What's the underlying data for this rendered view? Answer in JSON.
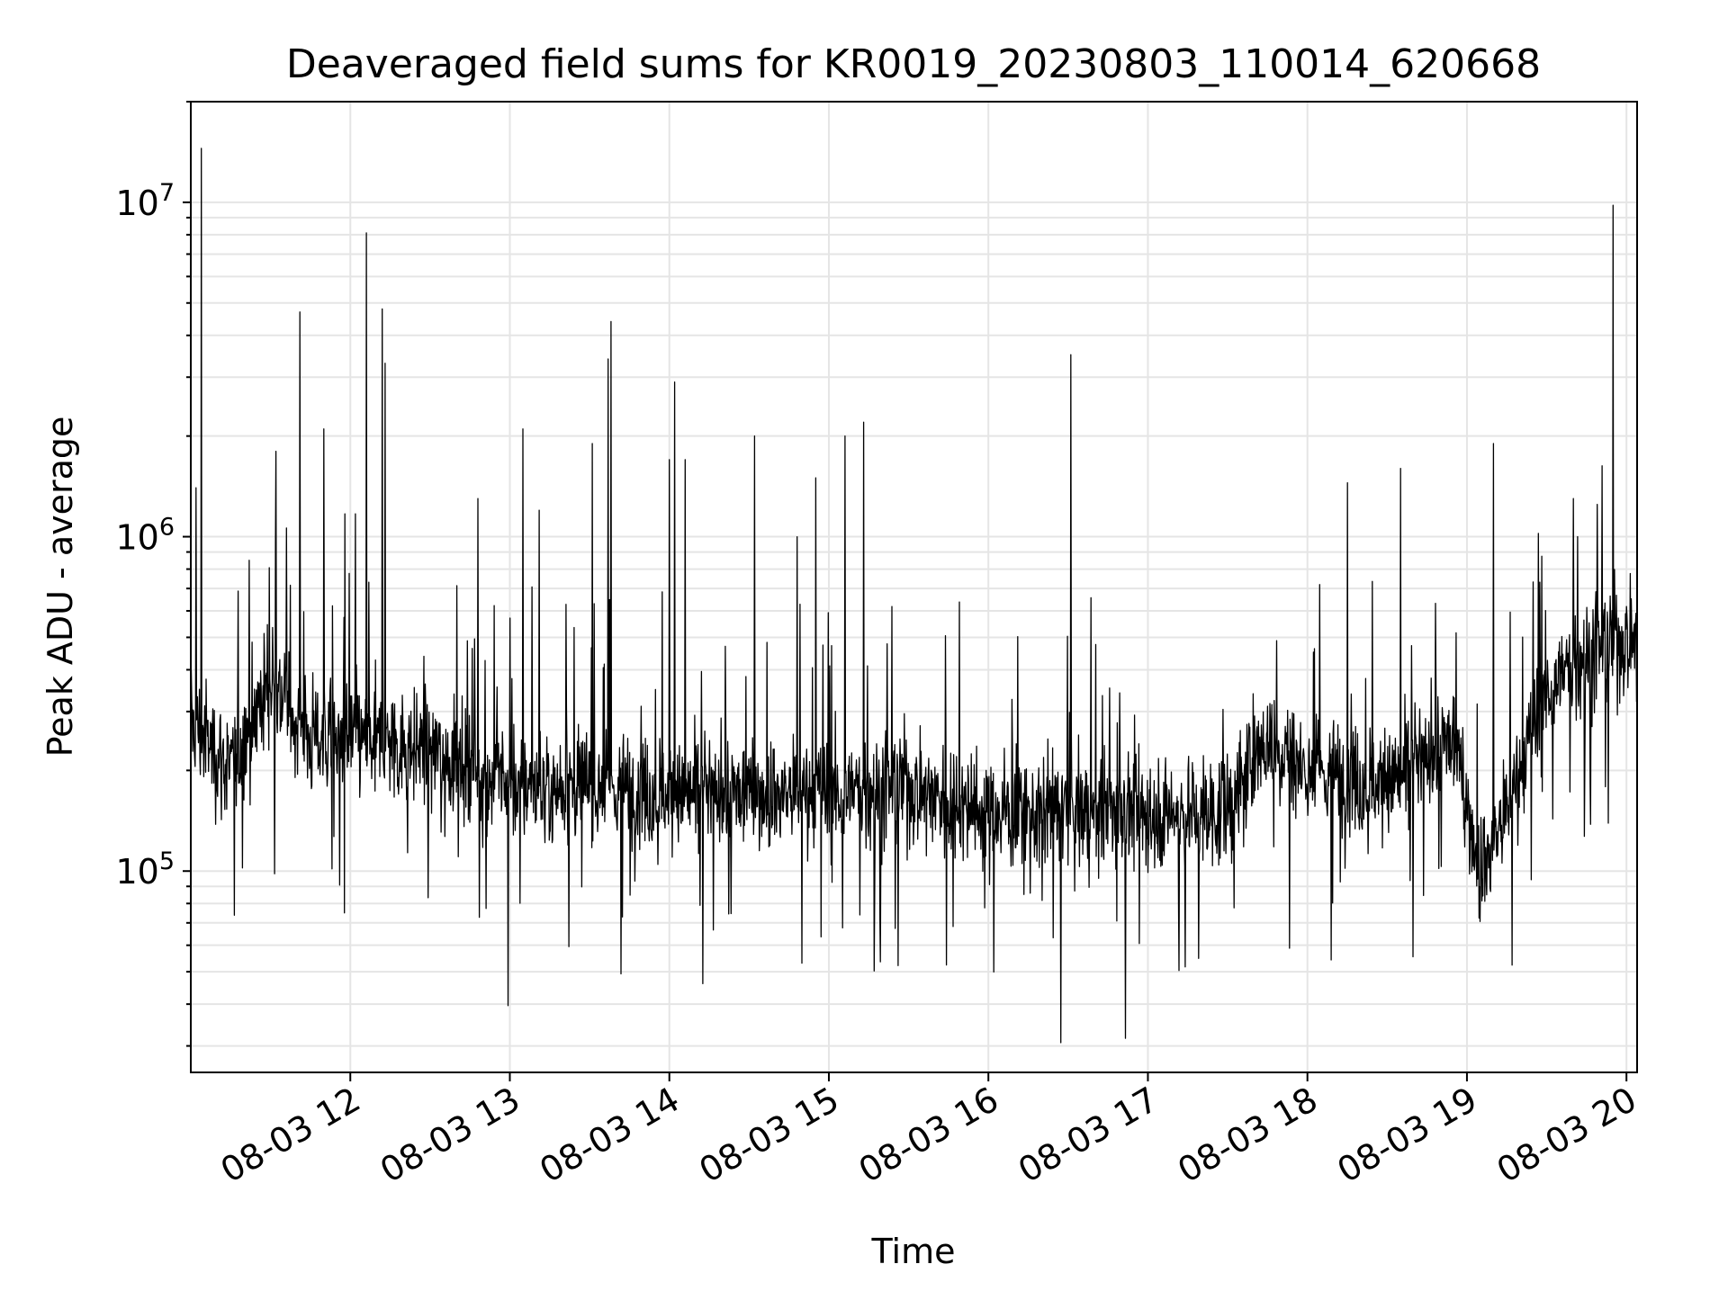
{
  "chart_data": {
    "type": "line",
    "title": "Deaveraged field sums for KR0019_20230803_110014_620668",
    "xlabel": "Time",
    "ylabel": "Peak ADU - average",
    "y_scale": "log",
    "ylim": [
      25000,
      20000000
    ],
    "xlim": [
      "2023-08-03 11:00",
      "2023-08-03 20:04"
    ],
    "x_ticks": [
      "2023-08-03 12:00",
      "2023-08-03 13:00",
      "2023-08-03 14:00",
      "2023-08-03 15:00",
      "2023-08-03 16:00",
      "2023-08-03 17:00",
      "2023-08-03 18:00",
      "2023-08-03 19:00",
      "2023-08-03 20:00"
    ],
    "x_tick_labels": [
      "08-03 12",
      "08-03 13",
      "08-03 14",
      "08-03 15",
      "08-03 16",
      "08-03 17",
      "08-03 18",
      "08-03 19",
      "08-03 20"
    ],
    "y_ticks": [
      100000,
      1000000,
      10000000
    ],
    "y_tick_labels": [
      {
        "base": "10",
        "exp": "5"
      },
      {
        "base": "10",
        "exp": "6"
      },
      {
        "base": "10",
        "exp": "7"
      }
    ],
    "grid": true,
    "line_color": "#000000",
    "grid_color": "#e5e5e5",
    "baseline_series": {
      "x": [
        "2023-08-03 11:00",
        "2023-08-03 11:15",
        "2023-08-03 11:30",
        "2023-08-03 11:45",
        "2023-08-03 12:00",
        "2023-08-03 12:30",
        "2023-08-03 13:00",
        "2023-08-03 13:30",
        "2023-08-03 14:00",
        "2023-08-03 14:30",
        "2023-08-03 15:00",
        "2023-08-03 15:30",
        "2023-08-03 16:00",
        "2023-08-03 16:30",
        "2023-08-03 17:00",
        "2023-08-03 17:30",
        "2023-08-03 17:45",
        "2023-08-03 18:00",
        "2023-08-03 18:30",
        "2023-08-03 18:55",
        "2023-08-03 19:05",
        "2023-08-03 19:15",
        "2023-08-03 19:30",
        "2023-08-03 19:45",
        "2023-08-03 20:00"
      ],
      "y": [
        280000,
        200000,
        380000,
        250000,
        250000,
        230000,
        180000,
        180000,
        170000,
        170000,
        170000,
        180000,
        150000,
        150000,
        150000,
        150000,
        250000,
        200000,
        180000,
        250000,
        100000,
        150000,
        350000,
        450000,
        500000
      ]
    },
    "spikes": [
      {
        "x": "2023-08-03 11:02",
        "y": 1400000
      },
      {
        "x": "2023-08-03 11:04",
        "y": 14500000
      },
      {
        "x": "2023-08-03 11:22",
        "y": 850000
      },
      {
        "x": "2023-08-03 11:32",
        "y": 1800000
      },
      {
        "x": "2023-08-03 11:41",
        "y": 4700000
      },
      {
        "x": "2023-08-03 11:50",
        "y": 2100000
      },
      {
        "x": "2023-08-03 11:58",
        "y": 1170000
      },
      {
        "x": "2023-08-03 12:02",
        "y": 1170000
      },
      {
        "x": "2023-08-03 12:06",
        "y": 8100000
      },
      {
        "x": "2023-08-03 12:12",
        "y": 4800000
      },
      {
        "x": "2023-08-03 12:13",
        "y": 3300000
      },
      {
        "x": "2023-08-03 12:48",
        "y": 1300000
      },
      {
        "x": "2023-08-03 13:05",
        "y": 2100000
      },
      {
        "x": "2023-08-03 13:11",
        "y": 1200000
      },
      {
        "x": "2023-08-03 13:31",
        "y": 1900000
      },
      {
        "x": "2023-08-03 13:37",
        "y": 3400000
      },
      {
        "x": "2023-08-03 13:38",
        "y": 4400000
      },
      {
        "x": "2023-08-03 14:00",
        "y": 1700000
      },
      {
        "x": "2023-08-03 14:02",
        "y": 2900000
      },
      {
        "x": "2023-08-03 14:06",
        "y": 1700000
      },
      {
        "x": "2023-08-03 14:32",
        "y": 2000000
      },
      {
        "x": "2023-08-03 14:48",
        "y": 1000000
      },
      {
        "x": "2023-08-03 14:55",
        "y": 1500000
      },
      {
        "x": "2023-08-03 15:06",
        "y": 2000000
      },
      {
        "x": "2023-08-03 15:13",
        "y": 2200000
      },
      {
        "x": "2023-08-03 16:31",
        "y": 3500000
      },
      {
        "x": "2023-08-03 18:15",
        "y": 1450000
      },
      {
        "x": "2023-08-03 18:35",
        "y": 1600000
      },
      {
        "x": "2023-08-03 19:10",
        "y": 1900000
      },
      {
        "x": "2023-08-03 19:40",
        "y": 1300000
      },
      {
        "x": "2023-08-03 19:55",
        "y": 9800000
      }
    ]
  }
}
